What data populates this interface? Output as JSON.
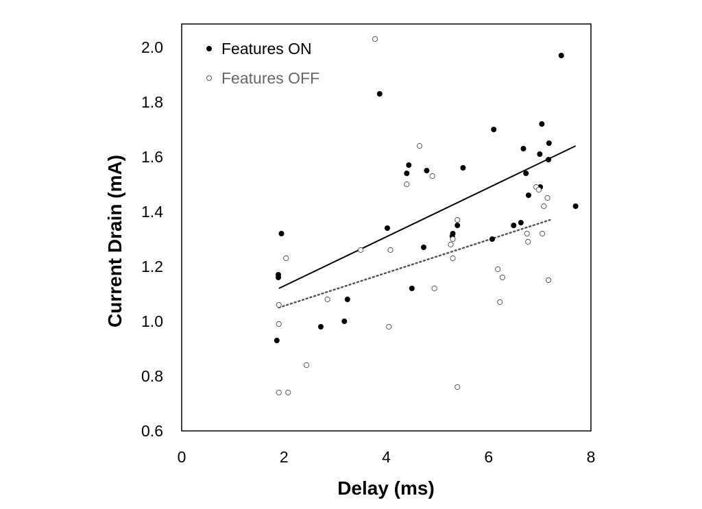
{
  "chart_data": {
    "type": "scatter",
    "title": "",
    "xlabel": "Delay (ms)",
    "ylabel": "Current Drain (mA)",
    "xlim": [
      0,
      8
    ],
    "ylim": [
      0.6,
      2.1
    ],
    "x_ticks": [
      "0",
      "2",
      "4",
      "6",
      "8"
    ],
    "y_ticks": [
      "0.6",
      "0.8",
      "1.0",
      "1.2",
      "1.4",
      "1.6",
      "1.8",
      "2.0"
    ],
    "grid": false,
    "legend_position": "top-left",
    "series": [
      {
        "name": "Features ON",
        "marker": "filled-circle",
        "color": "#000000",
        "trendline": {
          "style": "solid",
          "x": [
            1.9,
            7.7
          ],
          "y": [
            1.12,
            1.64
          ]
        },
        "points": [
          [
            1.86,
            0.93
          ],
          [
            1.89,
            1.16
          ],
          [
            1.89,
            1.17
          ],
          [
            1.95,
            1.32
          ],
          [
            2.72,
            0.98
          ],
          [
            3.18,
            1.0
          ],
          [
            3.24,
            1.08
          ],
          [
            3.87,
            1.83
          ],
          [
            4.02,
            1.34
          ],
          [
            4.4,
            1.54
          ],
          [
            4.44,
            1.57
          ],
          [
            4.5,
            1.12
          ],
          [
            4.73,
            1.27
          ],
          [
            4.79,
            1.55
          ],
          [
            5.29,
            1.31
          ],
          [
            5.3,
            1.32
          ],
          [
            5.39,
            1.35
          ],
          [
            5.5,
            1.56
          ],
          [
            6.07,
            1.3
          ],
          [
            6.1,
            1.7
          ],
          [
            6.49,
            1.35
          ],
          [
            6.63,
            1.36
          ],
          [
            6.68,
            1.63
          ],
          [
            6.73,
            1.54
          ],
          [
            6.78,
            1.46
          ],
          [
            7.0,
            1.61
          ],
          [
            7.01,
            1.49
          ],
          [
            7.04,
            1.72
          ],
          [
            7.17,
            1.59
          ],
          [
            7.18,
            1.65
          ],
          [
            7.42,
            1.97
          ],
          [
            7.7,
            1.42
          ]
        ]
      },
      {
        "name": "Features OFF",
        "marker": "open-circle",
        "color": "#555555",
        "trendline": {
          "style": "dotted",
          "x": [
            1.9,
            7.2
          ],
          "y": [
            1.05,
            1.37
          ]
        },
        "points": [
          [
            1.9,
            0.74
          ],
          [
            1.9,
            0.99
          ],
          [
            1.9,
            1.06
          ],
          [
            2.04,
            1.23
          ],
          [
            2.08,
            0.74
          ],
          [
            2.44,
            0.84
          ],
          [
            2.85,
            1.08
          ],
          [
            3.5,
            1.26
          ],
          [
            3.78,
            2.03
          ],
          [
            4.05,
            0.98
          ],
          [
            4.08,
            1.26
          ],
          [
            4.4,
            1.5
          ],
          [
            4.65,
            1.64
          ],
          [
            4.9,
            1.53
          ],
          [
            4.94,
            1.12
          ],
          [
            5.26,
            1.28
          ],
          [
            5.3,
            1.3
          ],
          [
            5.3,
            1.23
          ],
          [
            5.39,
            1.37
          ],
          [
            5.39,
            0.76
          ],
          [
            6.18,
            1.19
          ],
          [
            6.22,
            1.07
          ],
          [
            6.27,
            1.16
          ],
          [
            6.75,
            1.32
          ],
          [
            6.77,
            1.29
          ],
          [
            6.93,
            1.49
          ],
          [
            6.98,
            1.48
          ],
          [
            7.05,
            1.32
          ],
          [
            7.08,
            1.42
          ],
          [
            7.15,
            1.45
          ],
          [
            7.17,
            1.15
          ]
        ]
      }
    ]
  }
}
